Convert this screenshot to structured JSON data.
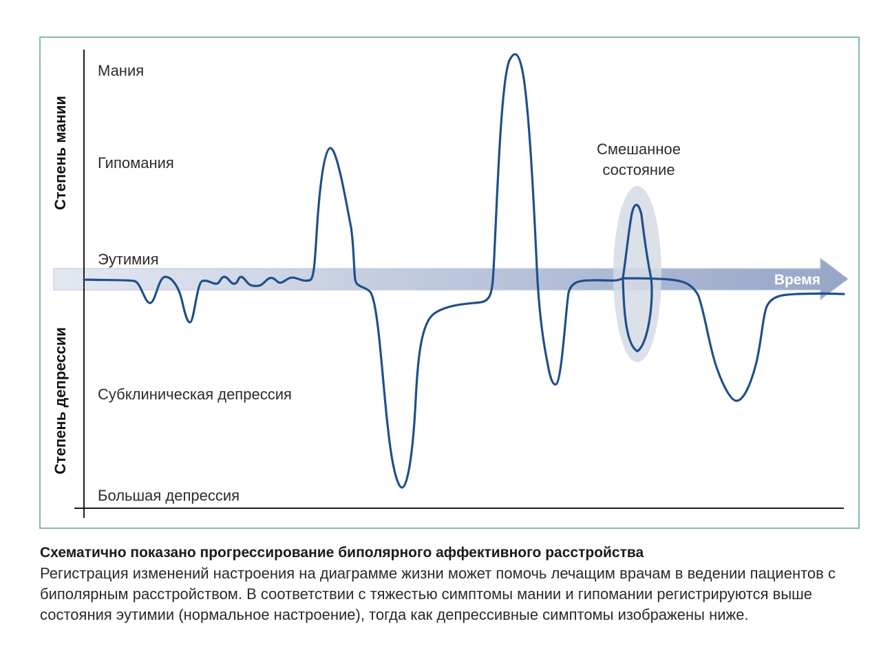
{
  "diagram": {
    "axis_upper_label": "Степень мании",
    "axis_lower_label": "Степень депрессии",
    "levels": {
      "mania": "Мания",
      "hypomania": "Гипомания",
      "euthymia": "Эутимия",
      "subclinical": "Субклиническая депрессия",
      "major": "Большая депрессия"
    },
    "time_label": "Время",
    "mixed_state": {
      "line1": "Смешанное",
      "line2": "состояние"
    },
    "colors": {
      "frame": "#5aa77c",
      "curve": "#1f4f8a",
      "time_arrow": "#bcc5dc",
      "mixed_highlight": "#d6dbe5"
    }
  },
  "caption": {
    "title": "Схематично показано прогрессирование биполярного аффективного расстройства",
    "text": "Регистрация изменений настроения на диаграмме жизни может помочь лечащим врачам в ведении пациентов с биполярным расстройством. В соответствии с тяжестью симптомы мании и гипомании регистрируются выше состояния эутимии (нормальное настроение), тогда как депрессивные симптомы изображены ниже."
  }
}
